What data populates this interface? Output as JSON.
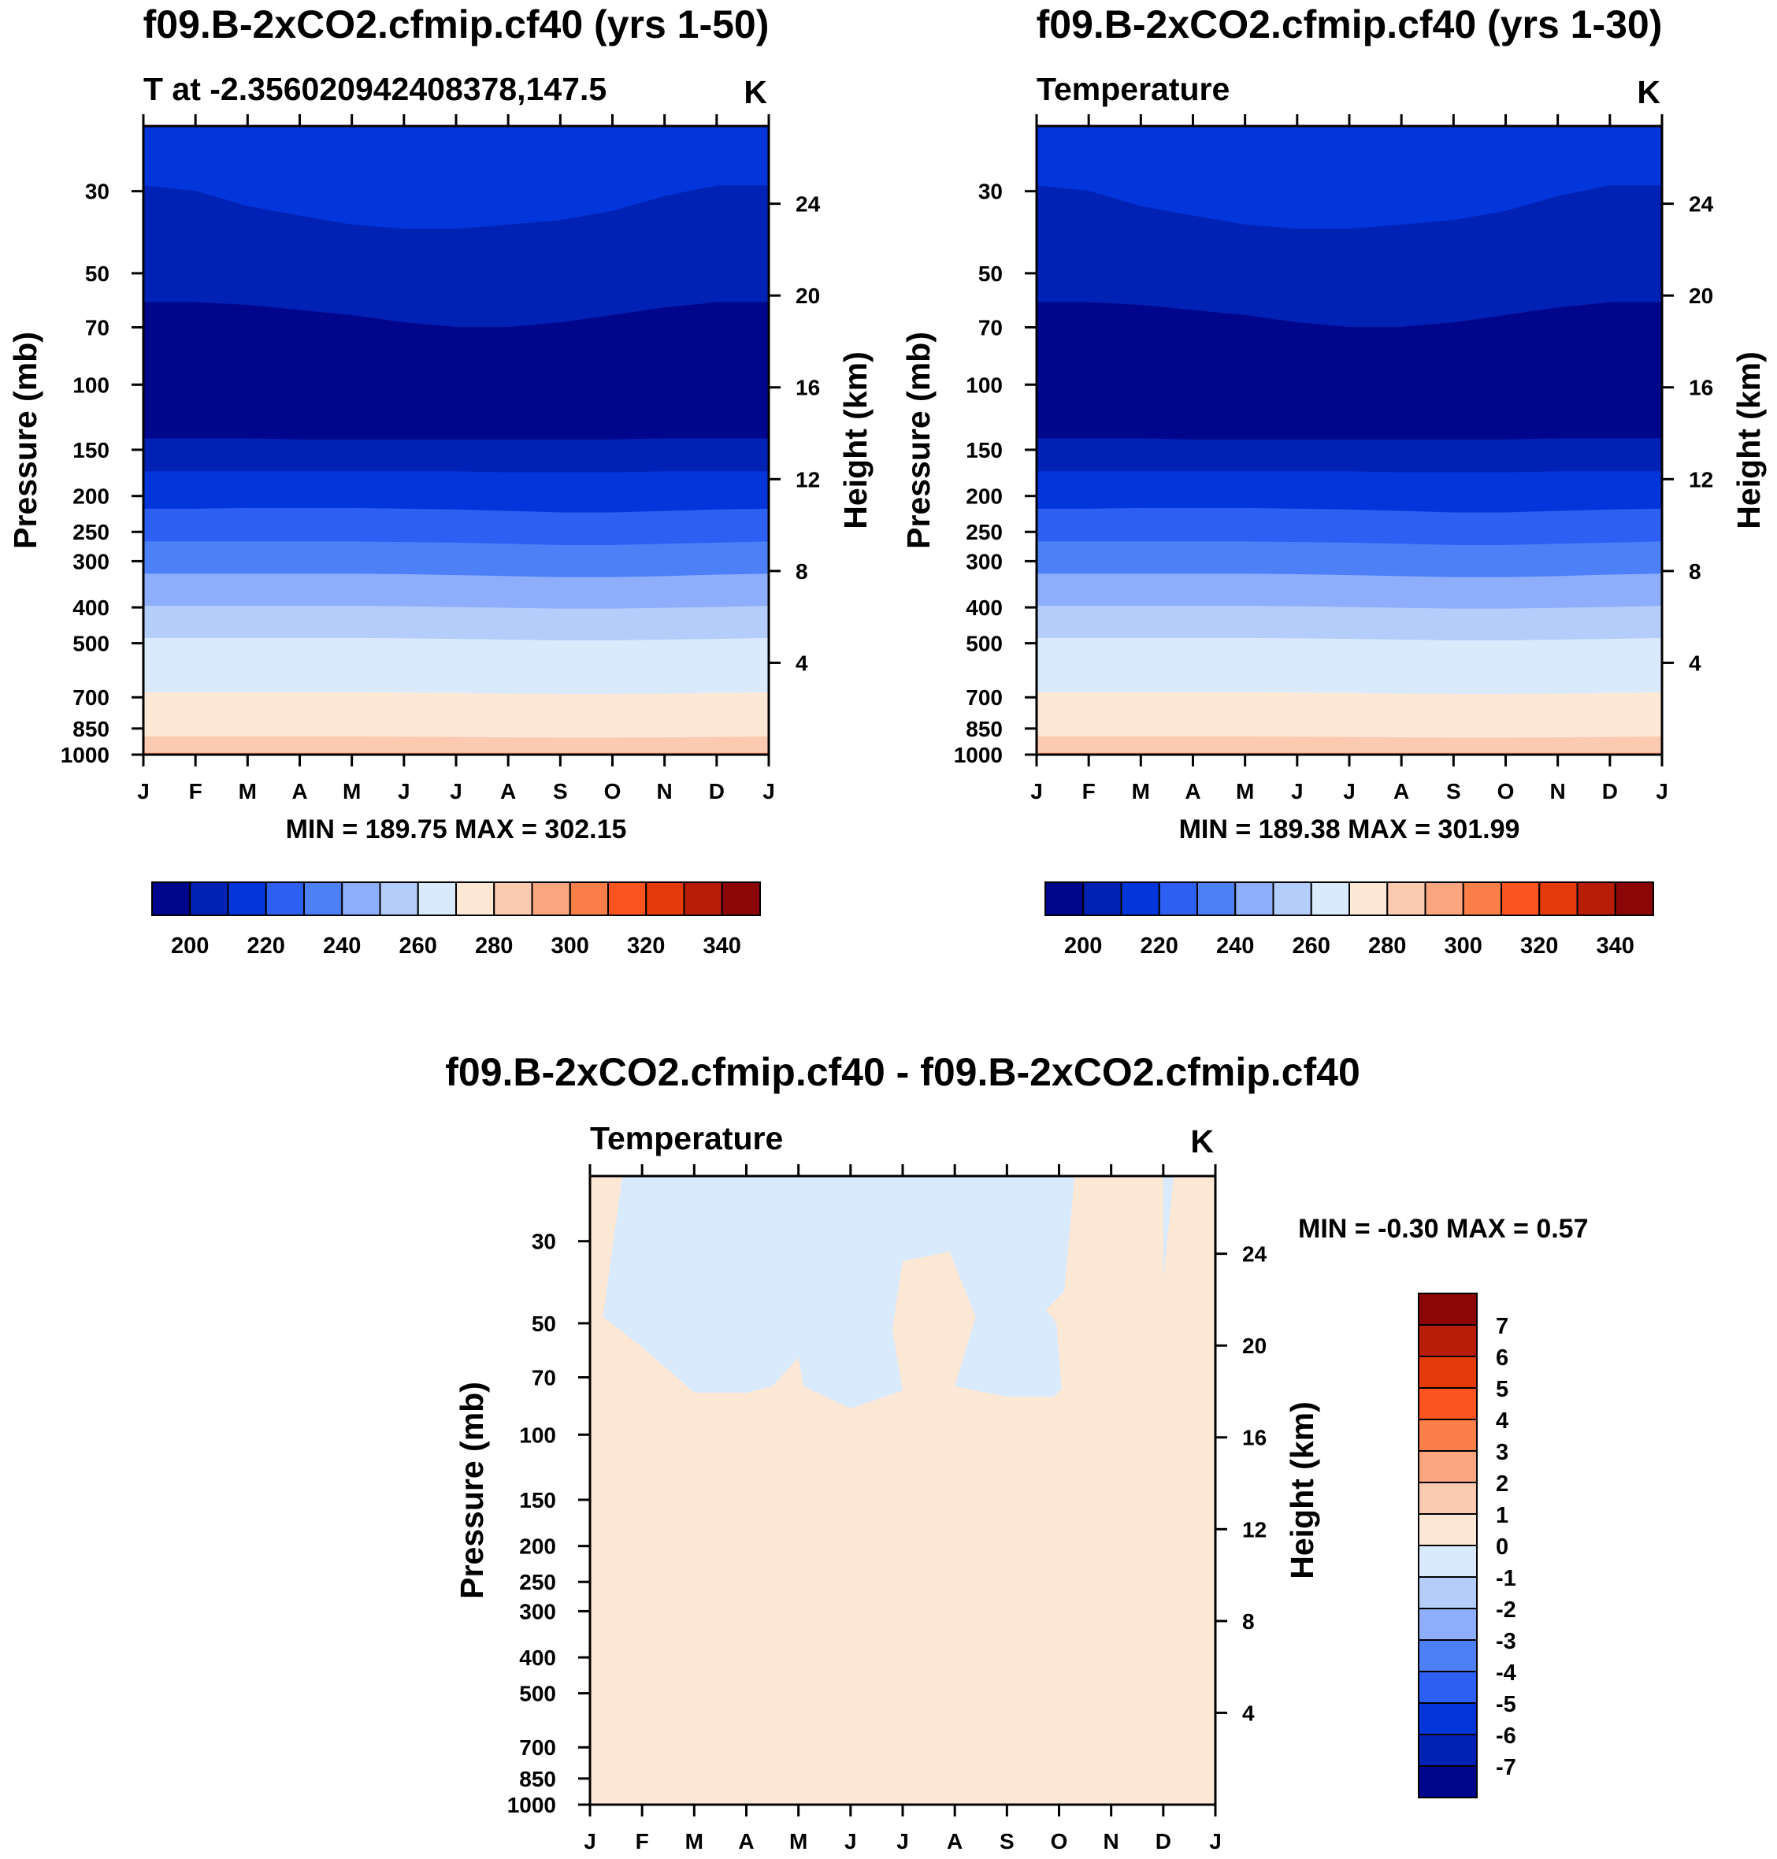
{
  "colors": {
    "scale": [
      "#00068b",
      "#0022b4",
      "#0236db",
      "#2e5ff3",
      "#4d80f7",
      "#8eadfa",
      "#b5cdfb",
      "#d9eafd",
      "#fde8d6",
      "#fcc9b1",
      "#fba67f",
      "#fc7e48",
      "#fb5420",
      "#e53b0a",
      "#b81e07",
      "#8b0606"
    ]
  },
  "chart_data": [
    {
      "type": "contour",
      "title": "f09.B-2xCO2.cfmip.cf40 (yrs 1-50)",
      "left_label": "T at -2.356020942408378,147.5",
      "unit": "K",
      "ylabel": "Pressure (mb)",
      "ylabel_right": "Height (km)",
      "x_ticks": [
        "J",
        "F",
        "M",
        "A",
        "M",
        "J",
        "J",
        "A",
        "S",
        "O",
        "N",
        "D",
        "J"
      ],
      "y_ticks": [
        30,
        50,
        70,
        100,
        150,
        200,
        250,
        300,
        400,
        500,
        700,
        850,
        1000
      ],
      "height_ticks": [
        24,
        20,
        16,
        12,
        8,
        4
      ],
      "minmax_text": "MIN = 189.75 MAX = 302.15",
      "levels": [
        200,
        210,
        220,
        230,
        240,
        250,
        260,
        270,
        280,
        290,
        300,
        310,
        320,
        330,
        340
      ],
      "colorbar_labels": [
        "200",
        "220",
        "240",
        "260",
        "280",
        "300",
        "320",
        "340"
      ],
      "bands": [
        {
          "color_index": 2,
          "upper_p": [
            20,
            20,
            20,
            20,
            20,
            20,
            20,
            20,
            20,
            20,
            20,
            20,
            20
          ]
        },
        {
          "color_index": 1,
          "upper_p": [
            29,
            30,
            33,
            35,
            37,
            38,
            38,
            37,
            36,
            34,
            31,
            29,
            29
          ]
        },
        {
          "color_index": 0,
          "upper_p": [
            60,
            60,
            61,
            63,
            65,
            68,
            70,
            70,
            68,
            65,
            62,
            60,
            60
          ]
        },
        {
          "color_index": 1,
          "upper_p": [
            140,
            140,
            140,
            141,
            141,
            141,
            141,
            141,
            141,
            141,
            140,
            140,
            140
          ]
        },
        {
          "color_index": 2,
          "upper_p": [
            172,
            172,
            172,
            172,
            172,
            172,
            172,
            173,
            173,
            173,
            172,
            172,
            172
          ]
        },
        {
          "color_index": 3,
          "upper_p": [
            217,
            217,
            216,
            216,
            216,
            217,
            218,
            220,
            222,
            222,
            220,
            218,
            217
          ]
        },
        {
          "color_index": 4,
          "upper_p": [
            266,
            266,
            266,
            266,
            266,
            267,
            268,
            270,
            272,
            272,
            270,
            268,
            266
          ]
        },
        {
          "color_index": 5,
          "upper_p": [
            325,
            325,
            325,
            325,
            325,
            326,
            328,
            330,
            332,
            332,
            330,
            327,
            325
          ]
        },
        {
          "color_index": 6,
          "upper_p": [
            397,
            397,
            397,
            397,
            397,
            398,
            400,
            402,
            404,
            404,
            402,
            400,
            397
          ]
        },
        {
          "color_index": 7,
          "upper_p": [
            485,
            485,
            485,
            485,
            485,
            486,
            488,
            490,
            492,
            492,
            490,
            488,
            485
          ]
        },
        {
          "color_index": 8,
          "upper_p": [
            680,
            680,
            680,
            680,
            680,
            681,
            683,
            685,
            687,
            687,
            685,
            683,
            680
          ]
        },
        {
          "color_index": 9,
          "upper_p": [
            895,
            895,
            895,
            895,
            895,
            896,
            898,
            900,
            902,
            902,
            900,
            898,
            895
          ]
        },
        {
          "color_index": 10,
          "upper_p": [
            990,
            990,
            990,
            990,
            990,
            990,
            990,
            990,
            990,
            990,
            990,
            990,
            990
          ]
        }
      ]
    },
    {
      "type": "contour",
      "title": "f09.B-2xCO2.cfmip.cf40 (yrs 1-30)",
      "left_label": "Temperature",
      "unit": "K",
      "ylabel": "Pressure (mb)",
      "ylabel_right": "Height (km)",
      "x_ticks": [
        "J",
        "F",
        "M",
        "A",
        "M",
        "J",
        "J",
        "A",
        "S",
        "O",
        "N",
        "D",
        "J"
      ],
      "y_ticks": [
        30,
        50,
        70,
        100,
        150,
        200,
        250,
        300,
        400,
        500,
        700,
        850,
        1000
      ],
      "height_ticks": [
        24,
        20,
        16,
        12,
        8,
        4
      ],
      "minmax_text": "MIN = 189.38 MAX = 301.99",
      "levels": [
        200,
        210,
        220,
        230,
        240,
        250,
        260,
        270,
        280,
        290,
        300,
        310,
        320,
        330,
        340
      ],
      "colorbar_labels": [
        "200",
        "220",
        "240",
        "260",
        "280",
        "300",
        "320",
        "340"
      ],
      "bands": [
        {
          "color_index": 2,
          "upper_p": [
            20,
            20,
            20,
            20,
            20,
            20,
            20,
            20,
            20,
            20,
            20,
            20,
            20
          ]
        },
        {
          "color_index": 1,
          "upper_p": [
            29,
            30,
            33,
            35,
            37,
            38,
            38,
            37,
            36,
            34,
            31,
            29,
            29
          ]
        },
        {
          "color_index": 0,
          "upper_p": [
            60,
            60,
            61,
            63,
            65,
            68,
            70,
            70,
            68,
            65,
            62,
            60,
            60
          ]
        },
        {
          "color_index": 1,
          "upper_p": [
            140,
            140,
            140,
            141,
            141,
            141,
            141,
            141,
            141,
            141,
            140,
            140,
            140
          ]
        },
        {
          "color_index": 2,
          "upper_p": [
            172,
            172,
            172,
            172,
            172,
            172,
            172,
            173,
            173,
            173,
            172,
            172,
            172
          ]
        },
        {
          "color_index": 3,
          "upper_p": [
            217,
            217,
            216,
            216,
            216,
            217,
            218,
            220,
            222,
            222,
            220,
            218,
            217
          ]
        },
        {
          "color_index": 4,
          "upper_p": [
            266,
            266,
            266,
            266,
            266,
            267,
            268,
            270,
            272,
            272,
            270,
            268,
            266
          ]
        },
        {
          "color_index": 5,
          "upper_p": [
            325,
            325,
            325,
            325,
            325,
            326,
            328,
            330,
            332,
            332,
            330,
            327,
            325
          ]
        },
        {
          "color_index": 6,
          "upper_p": [
            397,
            397,
            397,
            397,
            397,
            398,
            400,
            402,
            404,
            404,
            402,
            400,
            397
          ]
        },
        {
          "color_index": 7,
          "upper_p": [
            485,
            485,
            485,
            485,
            485,
            486,
            488,
            490,
            492,
            492,
            490,
            488,
            485
          ]
        },
        {
          "color_index": 8,
          "upper_p": [
            680,
            680,
            680,
            680,
            680,
            681,
            683,
            685,
            687,
            687,
            685,
            683,
            680
          ]
        },
        {
          "color_index": 9,
          "upper_p": [
            895,
            895,
            895,
            895,
            895,
            896,
            898,
            900,
            902,
            902,
            900,
            898,
            895
          ]
        },
        {
          "color_index": 10,
          "upper_p": [
            990,
            990,
            990,
            990,
            990,
            990,
            990,
            990,
            990,
            990,
            990,
            990,
            990
          ]
        }
      ]
    },
    {
      "type": "contour",
      "title": "f09.B-2xCO2.cfmip.cf40 - f09.B-2xCO2.cfmip.cf40",
      "left_label": "Temperature",
      "unit": "K",
      "ylabel": "Pressure (mb)",
      "ylabel_right": "Height (km)",
      "x_ticks": [
        "J",
        "F",
        "M",
        "A",
        "M",
        "J",
        "J",
        "A",
        "S",
        "O",
        "N",
        "D",
        "J"
      ],
      "y_ticks": [
        30,
        50,
        70,
        100,
        150,
        200,
        250,
        300,
        400,
        500,
        700,
        850,
        1000
      ],
      "height_ticks": [
        24,
        20,
        16,
        12,
        8,
        4
      ],
      "minmax_text": "MIN =  -0.30 MAX =   0.57",
      "levels": [
        -7,
        -6,
        -5,
        -4,
        -3,
        -2,
        -1,
        0,
        1,
        2,
        3,
        4,
        5,
        6,
        7
      ],
      "colorbar_labels": [
        "-7",
        "-6",
        "-5",
        "-4",
        "-3",
        "-2",
        "-1",
        "0",
        "1",
        "2",
        "3",
        "4",
        "5",
        "6",
        "7"
      ],
      "background_color_index": 8,
      "negative_region": {
        "color_index": 7,
        "outline": [
          [
            0.62,
            20
          ],
          [
            0.25,
            48
          ],
          [
            1.0,
            58
          ],
          [
            2.0,
            77
          ],
          [
            3.0,
            77
          ],
          [
            3.5,
            74
          ],
          [
            4.0,
            62
          ],
          [
            4.1,
            74
          ],
          [
            5.0,
            85
          ],
          [
            6.0,
            76
          ],
          [
            5.8,
            52
          ],
          [
            6.0,
            34
          ],
          [
            6.9,
            32
          ],
          [
            7.4,
            48
          ],
          [
            7.0,
            74
          ],
          [
            8.0,
            79
          ],
          [
            8.9,
            79
          ],
          [
            9.05,
            75
          ],
          [
            8.95,
            50
          ],
          [
            8.75,
            46
          ],
          [
            9.1,
            41
          ],
          [
            9.3,
            20
          ]
        ]
      },
      "negative_sliver": {
        "color_index": 7,
        "outline": [
          [
            11.0,
            20
          ],
          [
            11.2,
            20
          ],
          [
            11.0,
            38
          ]
        ]
      }
    }
  ]
}
